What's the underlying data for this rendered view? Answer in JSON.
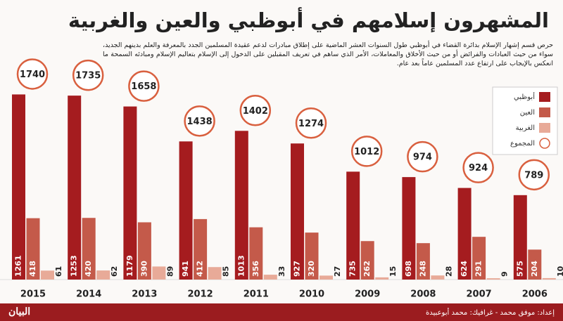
{
  "chart_data": {
    "type": "bar",
    "title": "المشهرون إسلامهم في أبوظبي والعين والغربية",
    "subtitle": "حرص قسم إشهار الإسلام بدائرة القضاء في أبوظبي طول السنوات العشر الماضية على إطلاق مبادرات لدعم عقيدة المسلمين الجدد بالمعرفة والعلم بدينهم الجديد، سواء من حيث العبادات والفرائض أو من حيث الأخلاق والمعاملات، الأمر الذي ساهم في تعريف المقبلين على الدخول إلى الإسلام بتعاليم الإسلام ومبادئه السمحة ما انعكس بالإيجاب على ارتفاع عدد المسلمين عاماً بعد عام.",
    "credits": "إعداد: موفق محمد - غرافيك: محمد أبوعبيدة",
    "source": "البيان",
    "categories": [
      "2015",
      "2014",
      "2013",
      "2012",
      "2011",
      "2010",
      "2009",
      "2008",
      "2007",
      "2006"
    ],
    "series": [
      {
        "name": "أبوظبي",
        "color": "#a51c1f",
        "values": [
          1261,
          1253,
          1179,
          941,
          1013,
          927,
          735,
          698,
          624,
          575
        ]
      },
      {
        "name": "العين",
        "color": "#c45a4a",
        "values": [
          418,
          420,
          390,
          412,
          356,
          320,
          262,
          248,
          291,
          204
        ]
      },
      {
        "name": "الغربية",
        "color": "#e8aa98",
        "values": [
          61,
          62,
          89,
          85,
          33,
          27,
          15,
          28,
          9,
          10
        ]
      }
    ],
    "totals": {
      "name": "المجموع",
      "color": "#d9603f",
      "values": [
        1740,
        1735,
        1658,
        1438,
        1402,
        1274,
        1012,
        974,
        924,
        789
      ]
    }
  }
}
